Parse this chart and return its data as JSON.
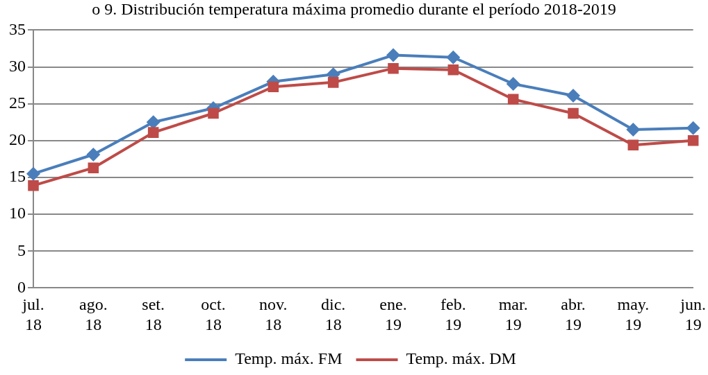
{
  "chart_data": {
    "type": "line",
    "title": "o 9. Distribución temperatura máxima promedio durante el período 2018-2019",
    "categories": [
      "jul.\n18",
      "ago.\n18",
      "set.\n18",
      "oct.\n18",
      "nov.\n18",
      "dic.\n18",
      "ene.\n19",
      "feb.\n19",
      "mar.\n19",
      "abr.\n19",
      "may.\n19",
      "jun.\n19"
    ],
    "series": [
      {
        "name": "Temp. máx. FM",
        "color": "#4a7ebb",
        "marker": "diamond",
        "values": [
          15.5,
          18.1,
          22.5,
          24.4,
          28.0,
          29.0,
          31.6,
          31.3,
          27.7,
          26.1,
          21.5,
          21.7
        ]
      },
      {
        "name": "Temp. máx. DM",
        "color": "#be4b48",
        "marker": "square",
        "values": [
          13.9,
          16.3,
          21.1,
          23.7,
          27.3,
          27.9,
          29.8,
          29.6,
          25.6,
          23.7,
          19.4,
          20.0
        ]
      }
    ],
    "ylim": [
      0,
      35
    ],
    "yticks": [
      0,
      5,
      10,
      15,
      20,
      25,
      30,
      35
    ],
    "grid": "y",
    "legend": "bottom",
    "line_style": "solid"
  }
}
